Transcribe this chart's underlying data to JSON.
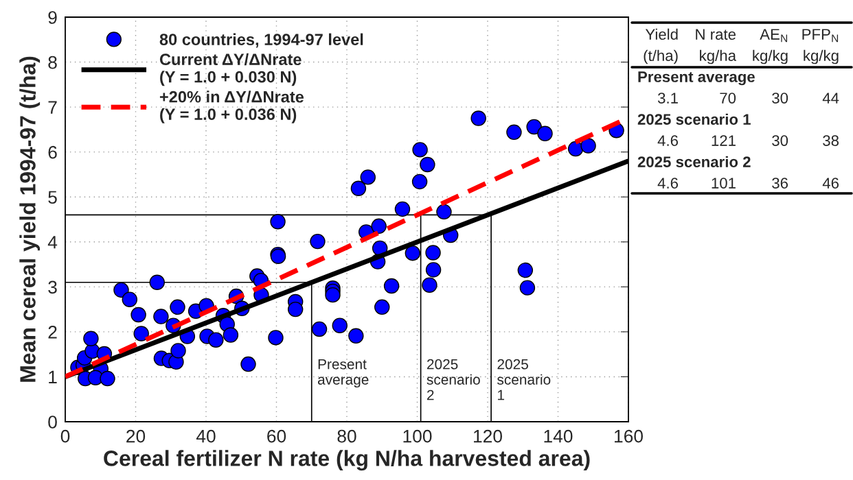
{
  "chart_data": {
    "type": "scatter",
    "xlabel": "Cereal fertilizer N rate (kg N/ha harvested area)",
    "ylabel": "Mean cereal yield 1994-97 (t/ha)",
    "xlim": [
      0,
      160
    ],
    "xticks": [
      0,
      20,
      40,
      60,
      80,
      100,
      120,
      140,
      160
    ],
    "ylim": [
      0,
      9
    ],
    "yticks": [
      0,
      1,
      2,
      3,
      4,
      5,
      6,
      7,
      8,
      9
    ],
    "grid": true,
    "legend": "top left",
    "marker": "circle",
    "series": [
      {
        "name": "80 countries, 1994-97 level",
        "color": "#0000ff",
        "x": [
          3.6,
          5.1,
          5.5,
          7.7,
          7.3,
          11.1,
          10.1,
          5.7,
          8.6,
          12.0,
          15.9,
          18.3,
          20.8,
          21.6,
          26.1,
          27.2,
          27.3,
          29.6,
          31.5,
          32.1,
          31.9,
          30.7,
          34.7,
          37.1,
          40.1,
          40.3,
          42.8,
          44.9,
          46.0,
          47.0,
          48.6,
          50.2,
          52.0,
          60.4,
          60.4,
          60.5,
          71.7,
          54.5,
          55.6,
          55.7,
          65.4,
          65.4,
          59.8,
          76.0,
          76.0,
          76.0,
          72.2,
          78.0,
          82.6,
          85.5,
          89.1,
          89.4,
          88.8,
          92.7,
          90.0,
          83.3,
          86.0,
          100.8,
          102.9,
          100.7,
          95.8,
          107.6,
          109.5,
          104.5,
          104.6,
          103.5,
          98.7,
          117.4,
          127.5,
          133.2,
          136.3,
          145.0,
          148.6,
          156.6,
          130.7,
          131.3
        ],
        "values": [
          1.21,
          1.26,
          1.42,
          1.57,
          1.85,
          1.51,
          1.18,
          0.96,
          0.98,
          0.96,
          2.93,
          2.72,
          2.38,
          1.96,
          3.1,
          2.34,
          1.41,
          1.36,
          1.33,
          1.58,
          2.55,
          2.14,
          1.9,
          2.46,
          2.58,
          1.9,
          1.82,
          2.36,
          2.17,
          1.93,
          2.79,
          2.52,
          1.28,
          4.45,
          3.72,
          3.68,
          4.01,
          3.24,
          3.14,
          2.82,
          2.67,
          2.5,
          1.87,
          2.97,
          2.9,
          2.82,
          2.06,
          2.14,
          1.91,
          4.22,
          4.35,
          3.86,
          3.56,
          3.02,
          2.55,
          5.19,
          5.44,
          6.05,
          5.72,
          5.34,
          4.73,
          4.67,
          4.15,
          3.76,
          3.38,
          3.04,
          3.75,
          6.75,
          6.44,
          6.56,
          6.41,
          6.07,
          6.14,
          6.48,
          3.37,
          2.98
        ]
      },
      {
        "type": "line",
        "name": "Current ΔY/ΔNrate\n(Y = 1.0 + 0.030 N)",
        "color": "#000000",
        "line_style": "solid",
        "marker": "none",
        "x": [
          0,
          160
        ],
        "values": [
          1.0,
          5.8
        ]
      },
      {
        "type": "line",
        "name": "+20% in ΔY/ΔNrate\n(Y = 1.0 + 0.036 N)",
        "color": "#ff0000",
        "line_style": "dashed",
        "marker": "none",
        "x": [
          0,
          160
        ],
        "values": [
          1.0,
          6.76
        ]
      },
      {
        "type": "line",
        "color": "#000000",
        "line_style": "solid",
        "marker": "none",
        "x": [
          0,
          70,
          70
        ],
        "values": [
          3.1,
          3.1,
          0
        ]
      },
      {
        "type": "line",
        "color": "#000000",
        "line_style": "solid",
        "marker": "none",
        "x": [
          0,
          121,
          121
        ],
        "values": [
          4.6,
          4.6,
          0
        ]
      },
      {
        "type": "line",
        "color": "#000000",
        "line_style": "solid",
        "marker": "none",
        "x": [
          101,
          101
        ],
        "values": [
          4.6,
          0
        ]
      }
    ],
    "annotations": [
      {
        "text": "Present\naverage",
        "x": 70,
        "y": 1.4
      },
      {
        "text": "2025\nscenario\n2",
        "x": 101,
        "y": 1.4
      },
      {
        "text": "2025\nscenario\n1",
        "x": 121,
        "y": 1.4
      },
      "Yield\tN rate\tAE$_{N}$\tPFP$_{N}$",
      "(t/ha)\tkg/ha\tkg/kg\tkg/kg",
      "Present average",
      "3.1\t70\t30\t44",
      "2025 scenario 1",
      "4.6\t121\t30\t38",
      "2025 scenario 2",
      "4.6\t101\t36\t46"
    ]
  }
}
